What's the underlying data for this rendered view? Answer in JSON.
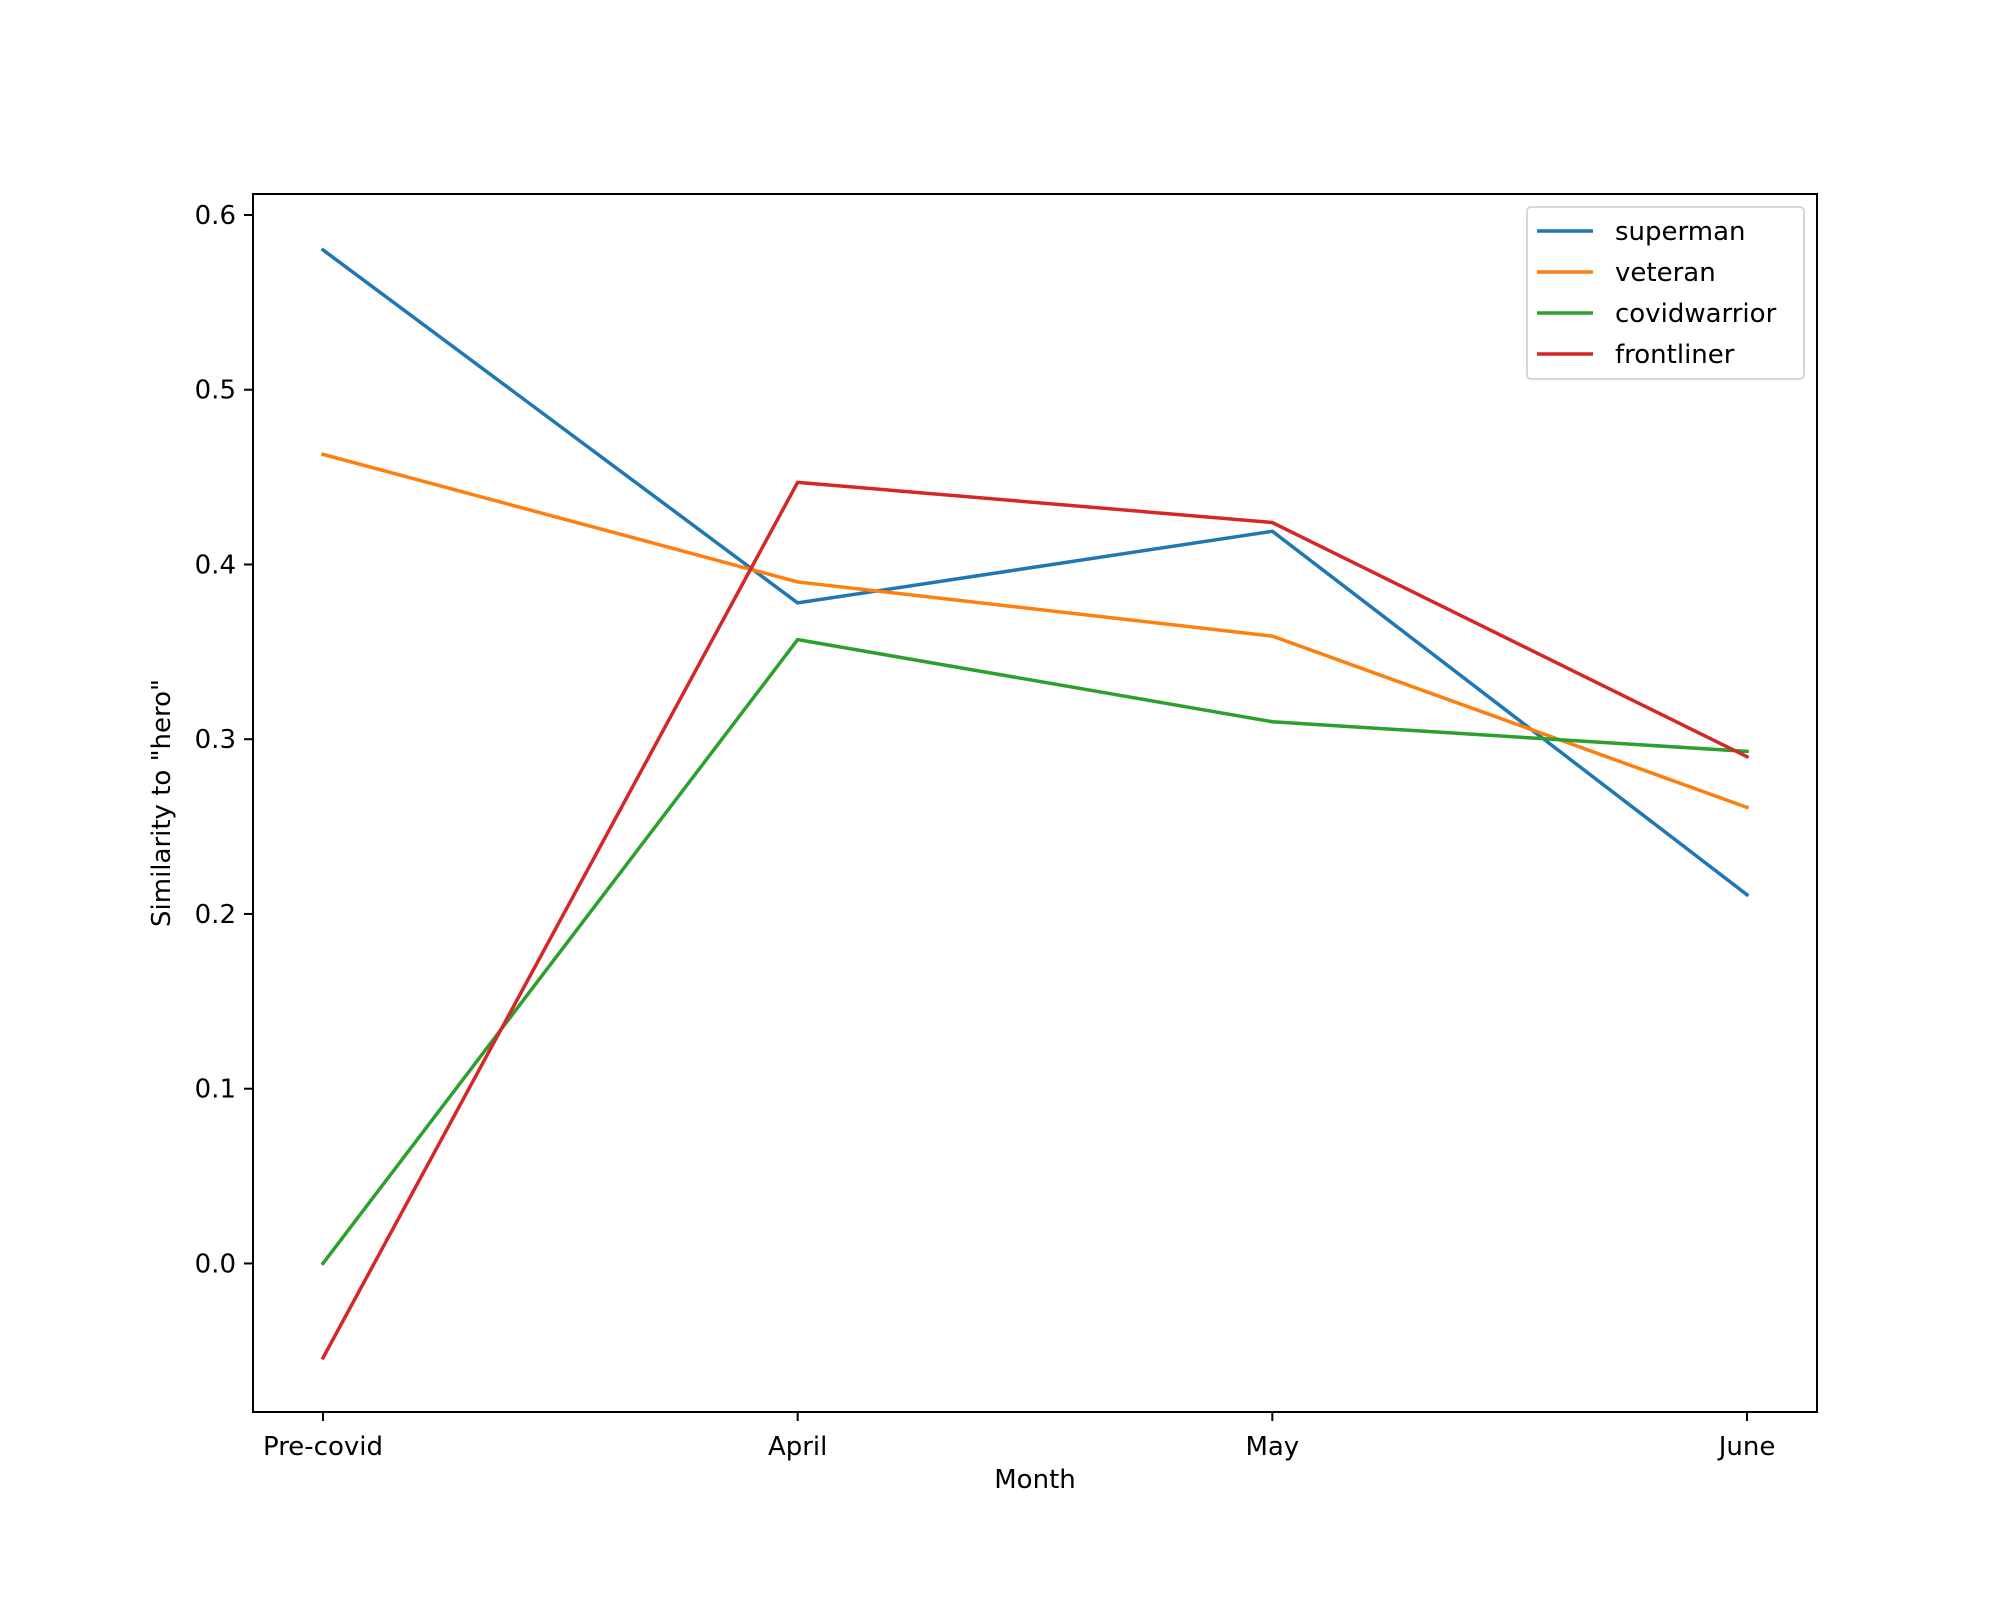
{
  "chart_data": {
    "type": "line",
    "title": "",
    "xlabel": "Month",
    "ylabel": "Similarity to \"hero\"",
    "categories": [
      "Pre-covid",
      "April",
      "May",
      "June"
    ],
    "y_ticks": [
      0.0,
      0.1,
      0.2,
      0.3,
      0.4,
      0.5,
      0.6
    ],
    "ylim": [
      -0.085,
      0.612
    ],
    "grid": false,
    "legend_position": "top-right",
    "series": [
      {
        "name": "superman",
        "color": "#1f77b4",
        "values": [
          0.58,
          0.378,
          0.419,
          0.211
        ]
      },
      {
        "name": "veteran",
        "color": "#ff7f0e",
        "values": [
          0.463,
          0.39,
          0.359,
          0.261
        ]
      },
      {
        "name": "covidwarrior",
        "color": "#2ca02c",
        "values": [
          0.0,
          0.357,
          0.31,
          0.293
        ]
      },
      {
        "name": "frontliner",
        "color": "#d62728",
        "values": [
          -0.054,
          0.447,
          0.424,
          0.29
        ]
      }
    ]
  }
}
